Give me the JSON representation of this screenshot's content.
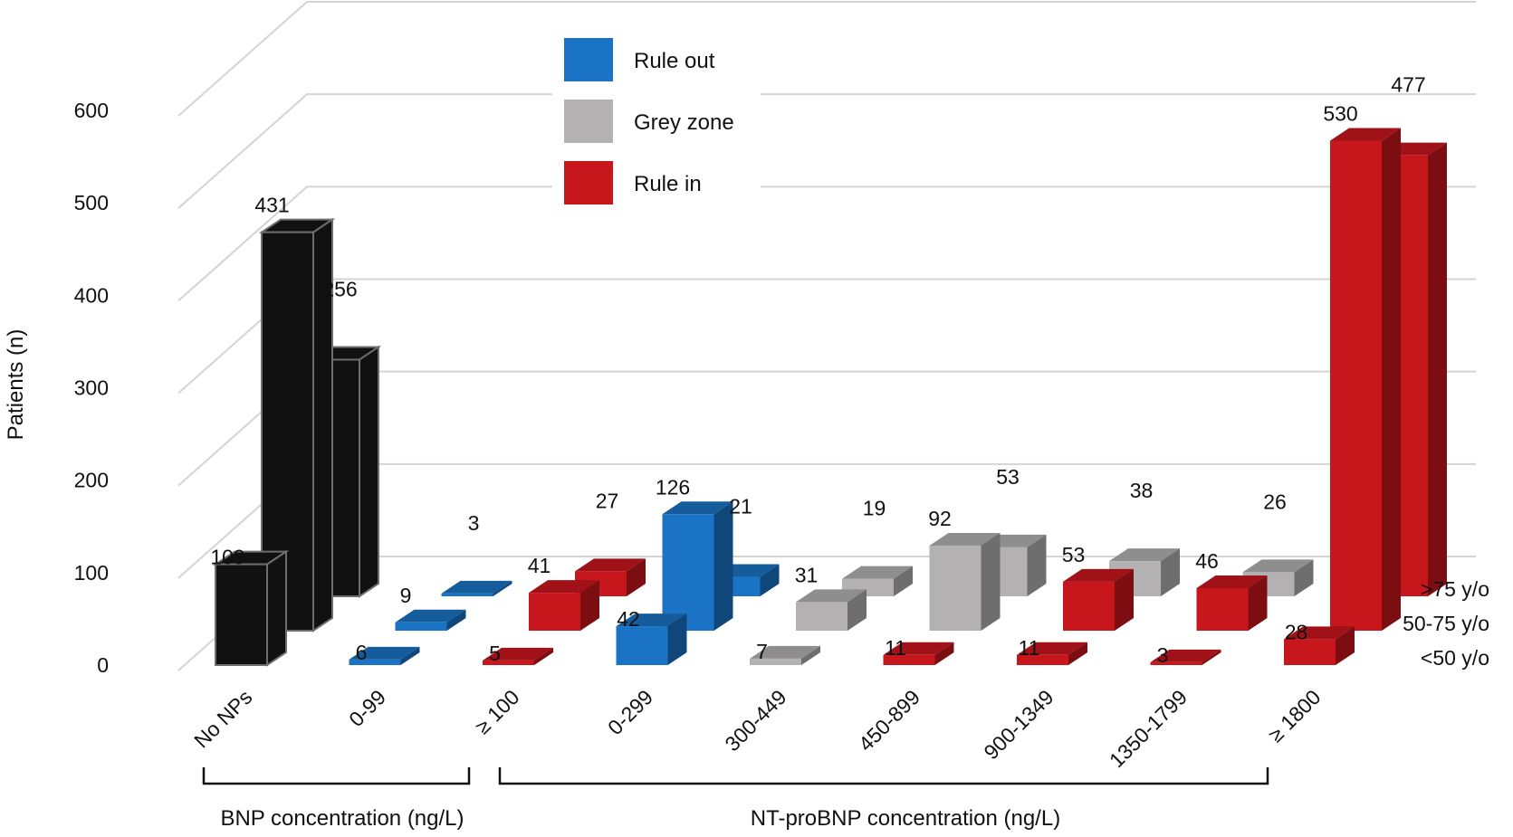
{
  "chart_data": {
    "type": "bar",
    "variant": "3d-bar-depth-rows",
    "ylabel": "Patients (n)",
    "ylim": [
      0,
      600
    ],
    "yticks": [
      0,
      100,
      200,
      300,
      400,
      500,
      600
    ],
    "grid": true,
    "legend_position": "top-center",
    "categories": [
      "No NPs",
      "0-99",
      "≥ 100",
      "0-299",
      "300-449",
      "450-899",
      "900-1349",
      "1350-1799",
      "≥ 1800"
    ],
    "depth_labels": [
      "<50 y/o",
      "50-75 y/o",
      ">75 y/o"
    ],
    "groups": [
      {
        "label": "BNP concentration (ng/L)",
        "categories": [
          "No NPs",
          "0-99",
          "≥ 100"
        ]
      },
      {
        "label": "NT-proBNP concentration (ng/L)",
        "categories": [
          "0-299",
          "300-449",
          "450-899",
          "900-1349",
          "1350-1799",
          "≥ 1800"
        ]
      }
    ],
    "legend": [
      {
        "key": "ruleout",
        "label": "Rule out",
        "color": "#1a73c4"
      },
      {
        "key": "grey",
        "label": "Grey zone",
        "color": "#b3b1b1"
      },
      {
        "key": "rulein",
        "label": "Rule in",
        "color": "#c8161d"
      }
    ],
    "colors": {
      "none": "#111111",
      "ruleout": "#1a73c4",
      "grey": "#b3b1b1",
      "rulein": "#c8161d"
    },
    "rows": [
      {
        "name": "<50 y/o",
        "values": [
          109,
          6,
          5,
          42,
          7,
          11,
          11,
          3,
          28
        ],
        "zones": [
          "none",
          "ruleout",
          "rulein",
          "ruleout",
          "grey",
          "rulein",
          "rulein",
          "rulein",
          "rulein"
        ]
      },
      {
        "name": "50-75 y/o",
        "values": [
          431,
          9,
          41,
          126,
          31,
          92,
          53,
          46,
          530
        ],
        "zones": [
          "none",
          "ruleout",
          "rulein",
          "ruleout",
          "grey",
          "grey",
          "rulein",
          "rulein",
          "rulein"
        ]
      },
      {
        "name": ">75 y/o",
        "values": [
          256,
          3,
          27,
          21,
          19,
          53,
          38,
          26,
          477
        ],
        "zones": [
          "none",
          "ruleout",
          "rulein",
          "ruleout",
          "grey",
          "grey",
          "grey",
          "grey",
          "rulein"
        ]
      }
    ]
  }
}
